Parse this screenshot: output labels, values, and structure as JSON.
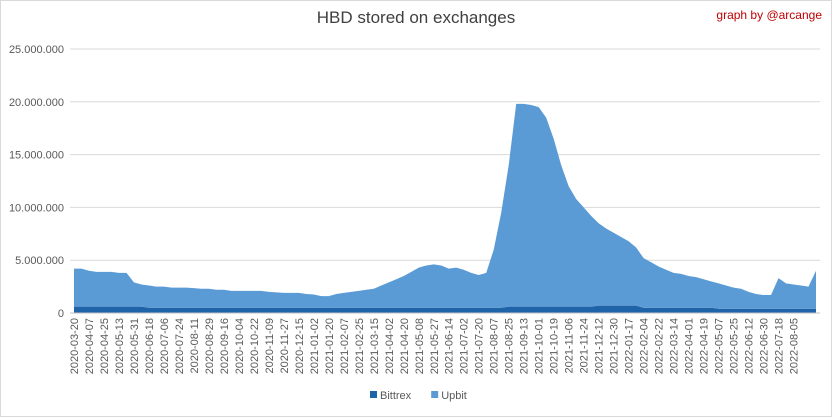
{
  "chart_data": {
    "type": "stacked_area",
    "title": "HBD stored on exchanges",
    "annotation": "graph by @arcange",
    "categories": [
      "2020-03-20",
      null,
      "2020-04-07",
      null,
      "2020-04-25",
      null,
      "2020-05-13",
      null,
      "2020-05-31",
      null,
      "2020-06-18",
      null,
      "2020-07-06",
      null,
      "2020-07-24",
      null,
      "2020-08-11",
      null,
      "2020-08-29",
      null,
      "2020-09-16",
      null,
      "2020-10-04",
      null,
      "2020-10-22",
      null,
      "2020-11-09",
      null,
      "2020-11-27",
      null,
      "2020-12-15",
      null,
      "2021-01-02",
      null,
      "2021-01-20",
      null,
      "2021-02-07",
      null,
      "2021-02-25",
      null,
      "2021-03-15",
      null,
      "2021-04-02",
      null,
      "2021-04-20",
      null,
      "2021-05-08",
      null,
      "2021-05-27",
      null,
      "2021-06-14",
      null,
      "2021-07-02",
      null,
      "2021-07-20",
      null,
      "2021-08-07",
      null,
      "2021-08-25",
      null,
      "2021-09-13",
      null,
      "2021-10-01",
      null,
      "2021-10-19",
      null,
      "2021-11-06",
      null,
      "2021-11-24",
      null,
      "2021-12-12",
      null,
      "2021-12-30",
      null,
      "2022-01-17",
      null,
      "2022-02-04",
      null,
      "2022-02-22",
      null,
      "2022-03-14",
      null,
      "2022-04-01",
      null,
      "2022-04-19",
      null,
      "2022-05-07",
      null,
      "2022-05-25",
      null,
      "2022-06-12",
      null,
      "2022-06-30",
      null,
      "2022-07-18",
      null,
      "2022-08-05",
      null,
      null,
      null
    ],
    "series": [
      {
        "name": "Bittrex",
        "color": "#1f64a8",
        "values": [
          600000,
          600000,
          600000,
          600000,
          600000,
          600000,
          600000,
          600000,
          600000,
          600000,
          500000,
          500000,
          500000,
          500000,
          500000,
          500000,
          500000,
          500000,
          500000,
          500000,
          500000,
          500000,
          500000,
          500000,
          500000,
          500000,
          500000,
          500000,
          500000,
          500000,
          500000,
          500000,
          500000,
          500000,
          500000,
          500000,
          500000,
          500000,
          500000,
          500000,
          500000,
          500000,
          500000,
          500000,
          500000,
          500000,
          500000,
          500000,
          500000,
          500000,
          500000,
          500000,
          500000,
          500000,
          500000,
          500000,
          500000,
          500000,
          600000,
          600000,
          600000,
          600000,
          600000,
          600000,
          600000,
          600000,
          600000,
          600000,
          600000,
          600000,
          700000,
          700000,
          700000,
          700000,
          700000,
          700000,
          500000,
          500000,
          500000,
          500000,
          500000,
          500000,
          500000,
          500000,
          500000,
          500000,
          400000,
          400000,
          400000,
          400000,
          400000,
          400000,
          400000,
          400000,
          400000,
          400000,
          400000,
          400000,
          400000,
          400000
        ]
      },
      {
        "name": "Upbit",
        "color": "#5b9bd5",
        "values": [
          3600000,
          3600000,
          3400000,
          3300000,
          3300000,
          3300000,
          3200000,
          3200000,
          2300000,
          2100000,
          2100000,
          2000000,
          2000000,
          1900000,
          1900000,
          1900000,
          1850000,
          1800000,
          1800000,
          1700000,
          1700000,
          1600000,
          1600000,
          1600000,
          1600000,
          1600000,
          1500000,
          1450000,
          1400000,
          1400000,
          1400000,
          1300000,
          1250000,
          1100000,
          1100000,
          1300000,
          1400000,
          1500000,
          1600000,
          1700000,
          1800000,
          2100000,
          2400000,
          2700000,
          3000000,
          3400000,
          3800000,
          4000000,
          4100000,
          4000000,
          3700000,
          3800000,
          3600000,
          3300000,
          3100000,
          3300000,
          5500000,
          9000000,
          13400000,
          19200000,
          19200000,
          19100000,
          18900000,
          17900000,
          15900000,
          13400000,
          11400000,
          10200000,
          9400000,
          8600000,
          7800000,
          7300000,
          6900000,
          6500000,
          6100000,
          5500000,
          4700000,
          4300000,
          3900000,
          3600000,
          3300000,
          3200000,
          3000000,
          2900000,
          2700000,
          2500000,
          2400000,
          2200000,
          2000000,
          1900000,
          1600000,
          1400000,
          1300000,
          1300000,
          2900000,
          2400000,
          2300000,
          2200000,
          2100000,
          3600000
        ]
      }
    ],
    "ylim": [
      0,
      25000000
    ],
    "yticks": [
      0,
      {
        "value": 5000000,
        "label": "5.000.000"
      },
      {
        "value": 10000000,
        "label": "10.000.000"
      },
      {
        "value": 15000000,
        "label": "15.000.000"
      },
      {
        "value": 20000000,
        "label": "20.000.000"
      },
      {
        "value": 25000000,
        "label": "25.000.000"
      }
    ],
    "grid": true,
    "legend": "bottom"
  }
}
